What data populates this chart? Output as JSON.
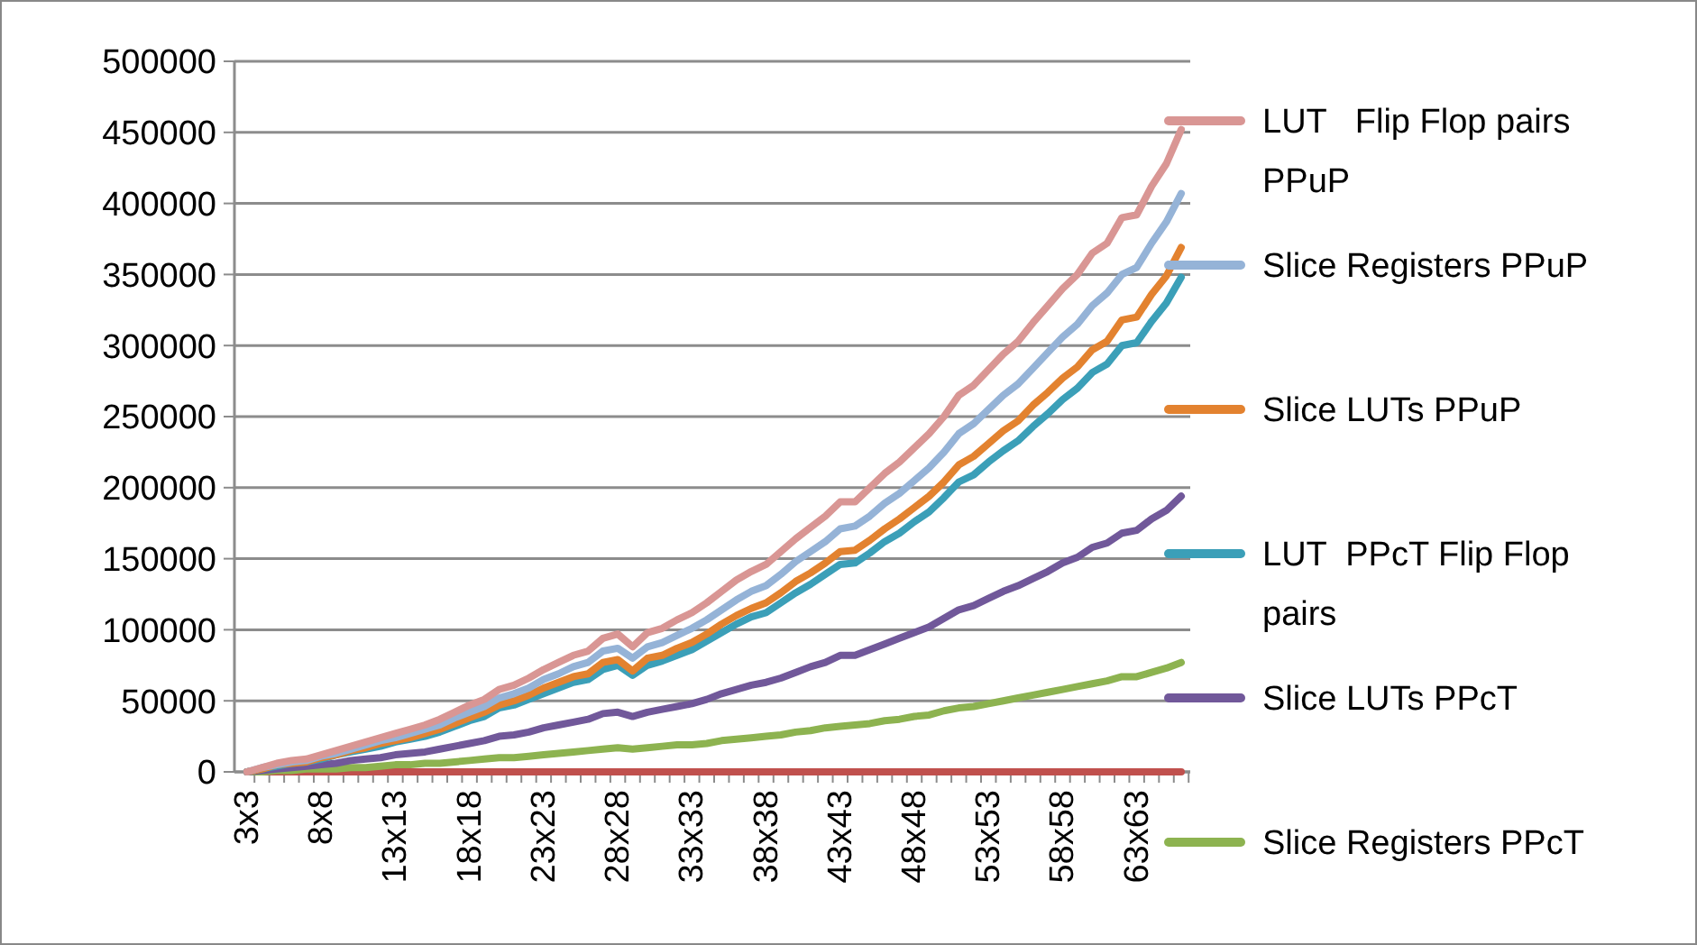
{
  "chart_data": {
    "type": "line",
    "categories": [
      "3x3",
      null,
      null,
      null,
      null,
      "8x8",
      null,
      null,
      null,
      null,
      "13x13",
      null,
      null,
      null,
      null,
      "18x18",
      null,
      null,
      null,
      null,
      "23x23",
      null,
      null,
      null,
      null,
      "28x28",
      null,
      null,
      null,
      null,
      "33x33",
      null,
      null,
      null,
      null,
      "38x38",
      null,
      null,
      null,
      null,
      "43x43",
      null,
      null,
      null,
      null,
      "48x48",
      null,
      null,
      null,
      null,
      "53x53",
      null,
      null,
      null,
      null,
      "58x58",
      null,
      null,
      null,
      null,
      "63x63",
      null,
      null,
      null
    ],
    "ylim": [
      0,
      500000
    ],
    "yticks": [
      0,
      50000,
      100000,
      150000,
      200000,
      250000,
      300000,
      350000,
      400000,
      450000,
      500000
    ],
    "grid": "y",
    "legend": "right",
    "marker": "none",
    "series": [
      {
        "name": "LUT   Flip Flop pairs PPuP",
        "color": "#d99694",
        "values": [
          0,
          3000,
          6000,
          8000,
          9000,
          12000,
          15000,
          18000,
          21000,
          24000,
          27000,
          30000,
          33000,
          37000,
          42000,
          47000,
          51000,
          58000,
          61000,
          66000,
          72000,
          77000,
          82000,
          85000,
          94000,
          97000,
          88000,
          98000,
          101000,
          107000,
          112000,
          119000,
          127000,
          135000,
          141000,
          146000,
          155000,
          164000,
          172000,
          180000,
          190000,
          190000,
          200000,
          210000,
          218000,
          228000,
          238000,
          250000,
          265000,
          272000,
          283000,
          294000,
          303000,
          316000,
          328000,
          340000,
          350000,
          365000,
          372000,
          390000,
          392000,
          412000,
          428000,
          452000
        ]
      },
      {
        "name": "Slice Registers PPuP",
        "color": "#95b3d7",
        "values": [
          0,
          3000,
          5000,
          7000,
          8000,
          11000,
          13000,
          16000,
          19000,
          22000,
          24000,
          27000,
          30000,
          33000,
          38000,
          42000,
          46000,
          52000,
          55000,
          59000,
          65000,
          69000,
          74000,
          77000,
          85000,
          87000,
          80000,
          88000,
          91000,
          96000,
          101000,
          107000,
          114000,
          121000,
          127000,
          131000,
          139000,
          148000,
          155000,
          162000,
          171000,
          173000,
          180000,
          189000,
          196000,
          205000,
          214000,
          225000,
          238000,
          245000,
          255000,
          265000,
          273000,
          284000,
          295000,
          306000,
          315000,
          328000,
          337000,
          350000,
          355000,
          372000,
          387000,
          407000
        ]
      },
      {
        "name": "Slice LUTs PPuP",
        "color": "#e3822f",
        "values": [
          0,
          2000,
          5000,
          6000,
          7000,
          10000,
          12000,
          15000,
          17000,
          20000,
          22000,
          24000,
          27000,
          30000,
          34000,
          38000,
          42000,
          47000,
          50000,
          54000,
          59000,
          63000,
          67000,
          69000,
          77000,
          79000,
          71000,
          80000,
          82000,
          87000,
          91000,
          97000,
          104000,
          110000,
          115000,
          119000,
          126000,
          134000,
          140000,
          147000,
          155000,
          156000,
          163000,
          171000,
          178000,
          186000,
          194000,
          204000,
          216000,
          222000,
          231000,
          240000,
          247000,
          258000,
          267000,
          277000,
          285000,
          297000,
          303000,
          318000,
          320000,
          336000,
          349000,
          369000
        ]
      },
      {
        "name": "LUT  PPcT Flip Flop pairs",
        "color": "#3b9fb8",
        "values": [
          0,
          2000,
          4000,
          6000,
          7000,
          9000,
          12000,
          14000,
          16000,
          18000,
          21000,
          23000,
          25000,
          28000,
          32000,
          36000,
          39000,
          45000,
          47000,
          51000,
          55000,
          59000,
          63000,
          65000,
          72000,
          75000,
          68000,
          75000,
          78000,
          82000,
          86000,
          92000,
          98000,
          104000,
          109000,
          112000,
          119000,
          126000,
          132000,
          139000,
          146000,
          147000,
          154000,
          162000,
          168000,
          176000,
          183000,
          193000,
          204000,
          209000,
          218000,
          226000,
          233000,
          243000,
          252000,
          262000,
          270000,
          281000,
          287000,
          300000,
          302000,
          317000,
          330000,
          348000
        ]
      },
      {
        "name": "Slice LUTs PPcT",
        "color": "#71589a",
        "values": [
          0,
          1000,
          2000,
          3000,
          4000,
          5000,
          6000,
          8000,
          9000,
          10000,
          12000,
          13000,
          14000,
          16000,
          18000,
          20000,
          22000,
          25000,
          26000,
          28000,
          31000,
          33000,
          35000,
          37000,
          41000,
          42000,
          39000,
          42000,
          44000,
          46000,
          48000,
          51000,
          55000,
          58000,
          61000,
          63000,
          66000,
          70000,
          74000,
          77000,
          82000,
          82000,
          86000,
          90000,
          94000,
          98000,
          102000,
          108000,
          114000,
          117000,
          122000,
          127000,
          131000,
          136000,
          141000,
          147000,
          151000,
          158000,
          161000,
          168000,
          170000,
          178000,
          184000,
          194000
        ]
      },
      {
        "name": "Slice Registers PPcT",
        "color": "#8db350",
        "values": [
          0,
          0,
          1000,
          1000,
          2000,
          2000,
          2000,
          3000,
          3000,
          4000,
          5000,
          5000,
          6000,
          6000,
          7000,
          8000,
          9000,
          10000,
          10000,
          11000,
          12000,
          13000,
          14000,
          15000,
          16000,
          17000,
          16000,
          17000,
          18000,
          19000,
          19000,
          20000,
          22000,
          23000,
          24000,
          25000,
          26000,
          28000,
          29000,
          31000,
          32000,
          33000,
          34000,
          36000,
          37000,
          39000,
          40000,
          43000,
          45000,
          46000,
          48000,
          50000,
          52000,
          54000,
          56000,
          58000,
          60000,
          62000,
          64000,
          67000,
          67000,
          70000,
          73000,
          77000
        ]
      },
      {
        "color": "#c0504d",
        "values": [
          0,
          0,
          0,
          0,
          0,
          0,
          0,
          0,
          0,
          0,
          0,
          0,
          0,
          0,
          0,
          0,
          0,
          0,
          0,
          0,
          0,
          0,
          0,
          0,
          0,
          0,
          0,
          0,
          0,
          0,
          0,
          0,
          0,
          0,
          0,
          0,
          0,
          0,
          0,
          0,
          0,
          0,
          0,
          0,
          0,
          0,
          0,
          0,
          0,
          0,
          0,
          0,
          0,
          0,
          0,
          0,
          0,
          0,
          0,
          0,
          0,
          0,
          0,
          0
        ]
      }
    ]
  }
}
